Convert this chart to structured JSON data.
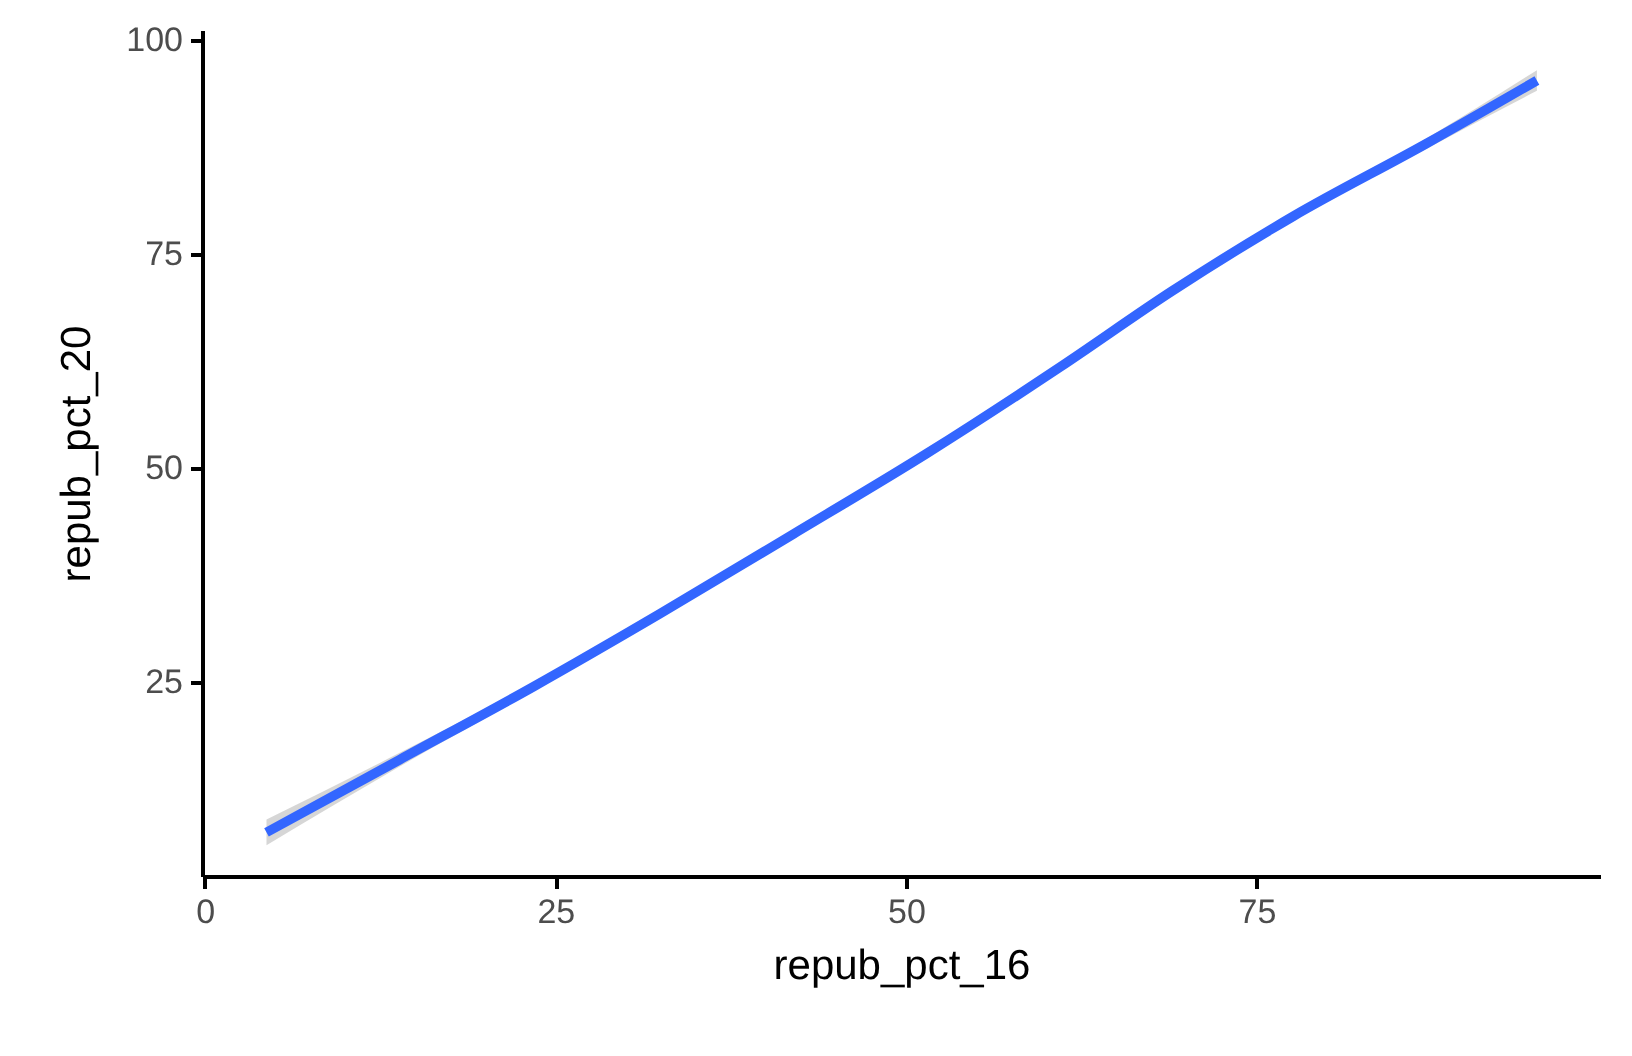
{
  "chart_data": {
    "type": "line",
    "xlabel": "repub_pct_16",
    "ylabel": "repub_pct_20",
    "series": [
      {
        "color": "#3366ff",
        "x": [
          4.4,
          13.9,
          23.4,
          32.5,
          42.0,
          51.5,
          61.0,
          69.0,
          77.6,
          87.1,
          95.0
        ],
        "values": [
          7.4,
          15.9,
          24.4,
          33.0,
          42.3,
          51.7,
          61.8,
          70.7,
          79.4,
          87.9,
          95.3
        ],
        "lower": [
          5.9,
          15.1,
          23.9,
          32.6,
          41.9,
          51.3,
          61.4,
          70.3,
          78.9,
          87.3,
          94.1
        ],
        "upper": [
          8.9,
          16.7,
          24.9,
          33.4,
          42.7,
          52.1,
          62.2,
          71.1,
          79.9,
          88.5,
          96.5
        ]
      }
    ],
    "xlim": [
      -0.2,
      99.5
    ],
    "ylim": [
      2.3,
      101.2
    ],
    "xticks": [
      0,
      25,
      50,
      75
    ],
    "yticks": [
      25,
      50,
      75,
      100
    ],
    "grid": false,
    "line_style": "solid"
  }
}
